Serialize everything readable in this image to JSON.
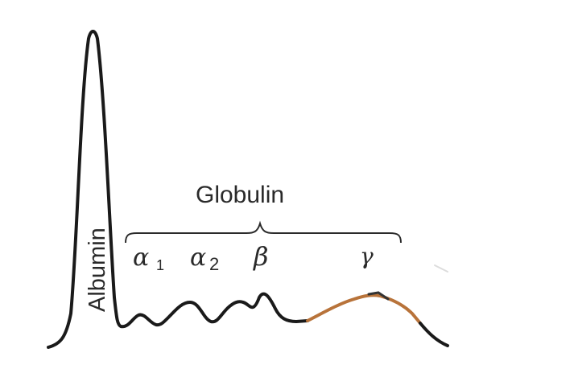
{
  "labels": {
    "albumin": "Albumin",
    "globulin": "Globulin",
    "alpha1_symbol": "α",
    "alpha1_subscript": "1",
    "alpha2_symbol": "α",
    "alpha2_subscript": "2",
    "beta": "β",
    "gamma": "γ"
  },
  "colors": {
    "curve": "#1a1a1a",
    "gamma_highlight": "#b8733a",
    "text": "#2a2a2a"
  }
}
